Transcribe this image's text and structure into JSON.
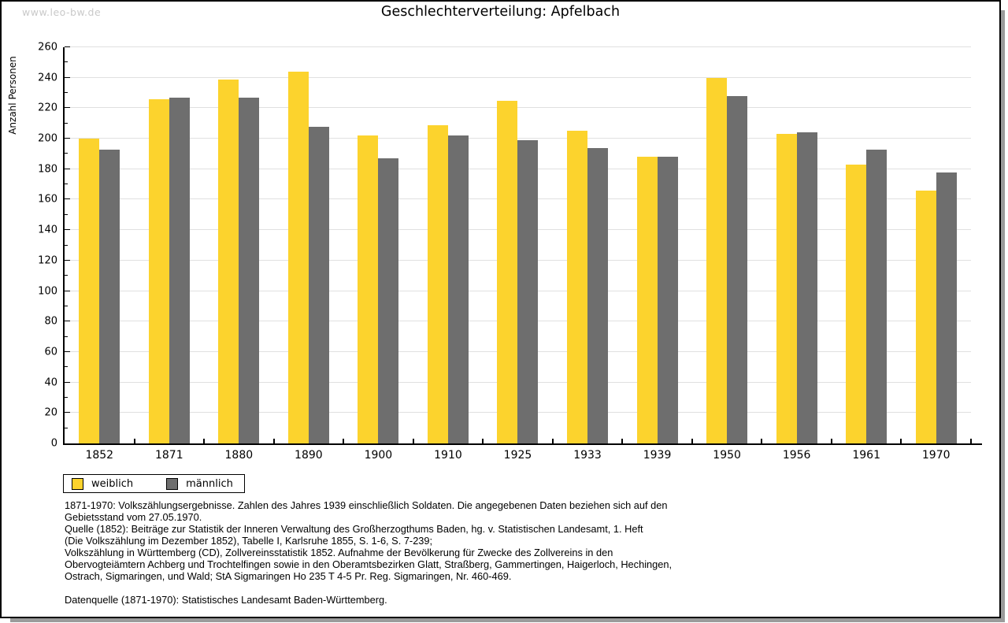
{
  "page": {
    "watermark": "www.leo-bw.de",
    "title": "Geschlechterverteilung: Apfelbach"
  },
  "chart_data": {
    "type": "bar",
    "title": "Geschlechterverteilung: Apfelbach",
    "xlabel": "",
    "ylabel": "Anzahl Personen",
    "ylim": [
      0,
      260
    ],
    "ytick_step": 20,
    "ytick_minor_step": 10,
    "grid": true,
    "legend_position": "bottom-left",
    "categories": [
      "1852",
      "1871",
      "1880",
      "1890",
      "1900",
      "1910",
      "1925",
      "1933",
      "1939",
      "1950",
      "1956",
      "1961",
      "1970"
    ],
    "series": [
      {
        "name": "weiblich",
        "color": "#fcd32d",
        "values": [
          200,
          226,
          239,
          244,
          202,
          209,
          225,
          205,
          188,
          240,
          203,
          183,
          166
        ]
      },
      {
        "name": "männlich",
        "color": "#6e6e6e",
        "values": [
          193,
          227,
          227,
          208,
          187,
          202,
          199,
          194,
          188,
          228,
          204,
          193,
          178
        ]
      }
    ]
  },
  "footer": {
    "source_text": "1871-1970: Volkszählungsergebnisse. Zahlen des Jahres 1939 einschließlich Soldaten. Die angegebenen Daten beziehen sich auf den\nGebietsstand vom 27.05.1970.\nQuelle (1852): Beiträge zur Statistik der Inneren Verwaltung des Großherzogthums Baden, hg. v. Statistischen Landesamt, 1. Heft\n(Die Volkszählung im Dezember 1852), Tabelle I, Karlsruhe 1855, S. 1-6, S. 7-239;\nVolkszählung in Württemberg (CD), Zollvereinsstatistik 1852. Aufnahme der Bevölkerung für Zwecke des Zollvereins in den\nObervogteiämtern Achberg und Trochtelfingen sowie in den Oberamtsbezirken Glatt, Straßberg, Gammertingen, Haigerloch, Hechingen,\nOstrach, Sigmaringen, und Wald; StA Sigmaringen Ho 235 T 4-5 Pr. Reg. Sigmaringen, Nr. 460-469.",
    "data_source": "Datenquelle (1871-1970): Statistisches Landesamt Baden-Württemberg."
  },
  "colors": {
    "female_bar": "#fcd32d",
    "male_bar": "#6e6e6e",
    "gridline": "#e0e0e0",
    "axis": "#000000",
    "watermark": "#c9c9c9",
    "page_border": "#000000",
    "shadow": "#9b9b9b"
  }
}
